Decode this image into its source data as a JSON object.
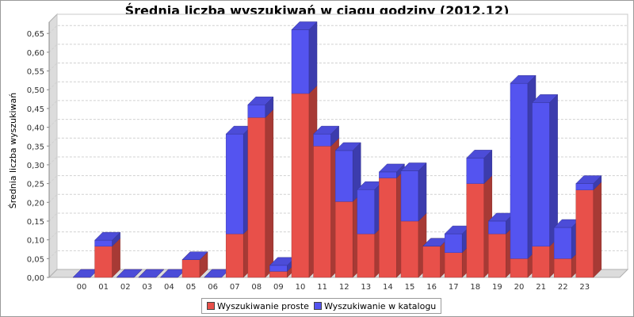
{
  "chart_data": {
    "type": "bar",
    "stacked": true,
    "three_d": true,
    "title": "Średnia liczba wyszukiwań w ciągu godziny (2012.12)",
    "ylabel": "Średnia liczba wyszukiwań",
    "xlabel": "",
    "ylim": [
      0,
      0.68
    ],
    "yticks": [
      "0,00",
      "0,05",
      "0,10",
      "0,15",
      "0,20",
      "0,25",
      "0,30",
      "0,35",
      "0,40",
      "0,45",
      "0,50",
      "0,55",
      "0,60",
      "0,65"
    ],
    "grid": true,
    "legend_position": "bottom",
    "categories": [
      "00",
      "01",
      "02",
      "03",
      "04",
      "05",
      "06",
      "07",
      "08",
      "09",
      "10",
      "11",
      "12",
      "13",
      "14",
      "15",
      "16",
      "17",
      "18",
      "19",
      "20",
      "21",
      "22",
      "23"
    ],
    "series": [
      {
        "name": "Wyszukiwanie proste",
        "color": "#e8504a",
        "values": [
          0,
          0.083,
          0,
          0,
          0,
          0.047,
          0,
          0.116,
          0.426,
          0.016,
          0.49,
          0.35,
          0.202,
          0.116,
          0.265,
          0.15,
          0.083,
          0.066,
          0.25,
          0.116,
          0.05,
          0.083,
          0.05,
          0.233
        ]
      },
      {
        "name": "Wyszukiwanie w katalogu",
        "color": "#5454f0",
        "values": [
          0,
          0.016,
          0,
          0,
          0,
          0,
          0,
          0.266,
          0.034,
          0.016,
          0.17,
          0.032,
          0.136,
          0.118,
          0.016,
          0.134,
          0,
          0.05,
          0.068,
          0.034,
          0.467,
          0.383,
          0.083,
          0.017
        ]
      }
    ]
  }
}
